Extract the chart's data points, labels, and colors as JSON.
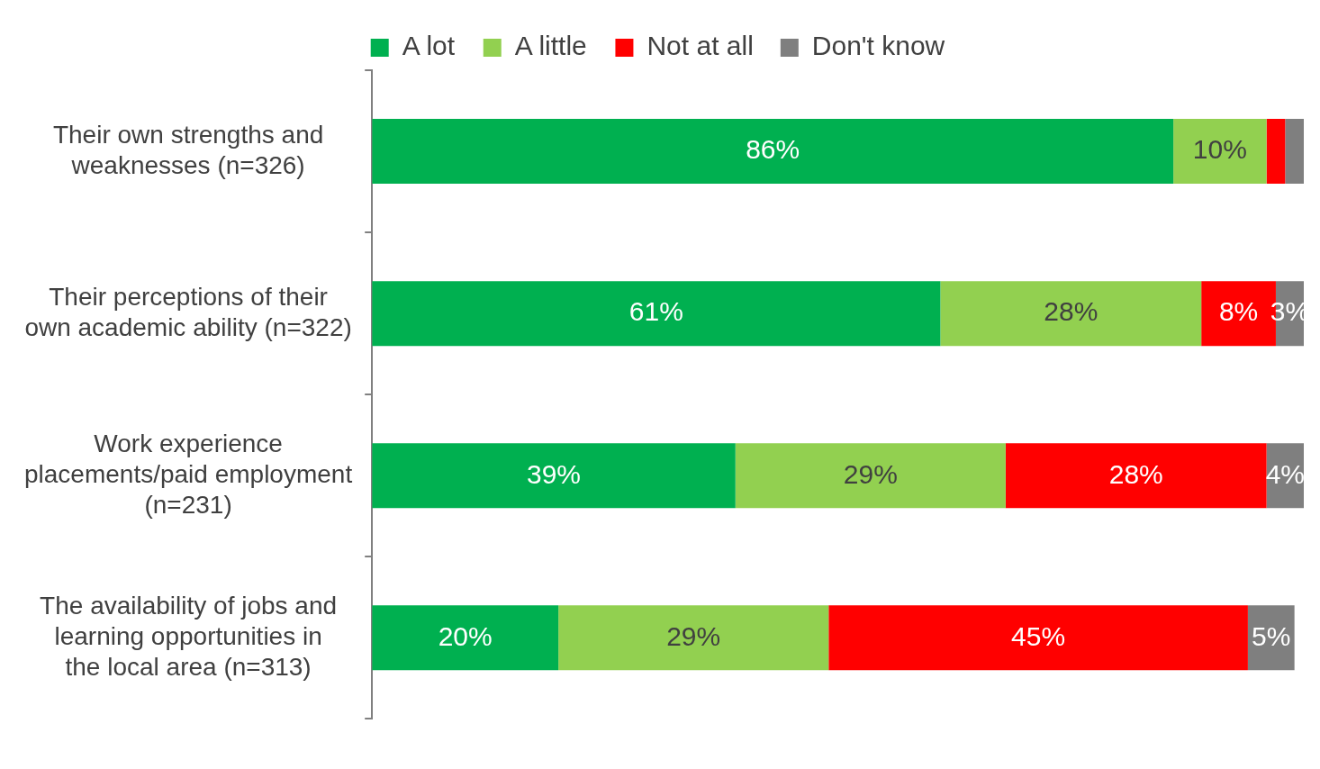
{
  "chart_data": {
    "type": "bar",
    "orientation": "horizontal",
    "stacked": true,
    "categories": [
      "Their own strengths and weaknesses (n=326)",
      "Their perceptions of their own academic ability (n=322)",
      "Work experience placements/paid employment (n=231)",
      "The availability of jobs and learning opportunities in the local area (n=313)"
    ],
    "series": [
      {
        "name": "A lot",
        "color": "#00b050",
        "values": [
          86,
          61,
          39,
          20
        ],
        "value_labels": [
          "86%",
          "61%",
          "39%",
          "20%"
        ]
      },
      {
        "name": "A little",
        "color": "#92d050",
        "values": [
          10,
          28,
          29,
          29
        ],
        "value_labels": [
          "10%",
          "28%",
          "29%",
          "29%"
        ]
      },
      {
        "name": "Not at all",
        "color": "#ff0000",
        "values": [
          2,
          8,
          28,
          45
        ],
        "value_labels": [
          null,
          "8%",
          "28%",
          "45%"
        ]
      },
      {
        "name": "Don't know",
        "color": "#7f7f7f",
        "values": [
          2,
          3,
          4,
          5
        ],
        "value_labels": [
          null,
          "3%",
          "4%",
          "5%"
        ]
      }
    ],
    "xlim": [
      0,
      100
    ],
    "tick_labels": "y",
    "legend": "top",
    "grid": false
  }
}
